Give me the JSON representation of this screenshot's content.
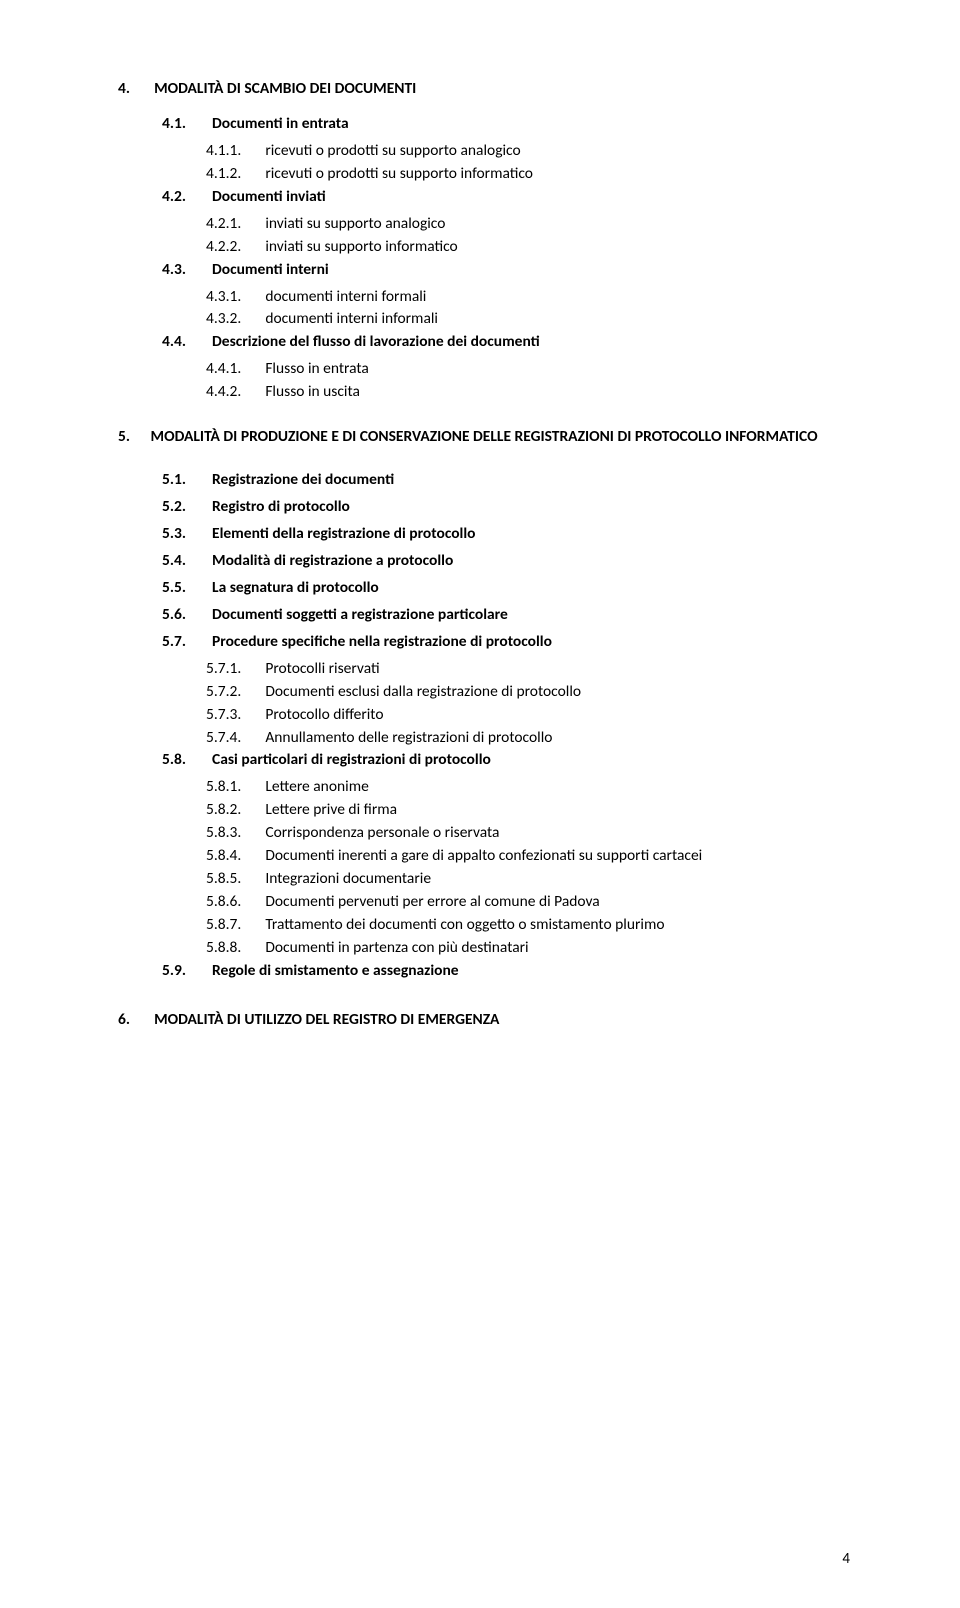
{
  "sec4": {
    "num": "4.",
    "title": "MODALITÀ DI SCAMBIO DEI  DOCUMENTI",
    "s1": {
      "num": "4.1.",
      "title": "Documenti in entrata",
      "s1": {
        "num": "4.1.1.",
        "text": "ricevuti o prodotti su supporto analogico"
      },
      "s2": {
        "num": "4.1.2.",
        "text": "ricevuti o prodotti su supporto informatico"
      }
    },
    "s2": {
      "num": "4.2.",
      "title": "Documenti inviati",
      "s1": {
        "num": "4.2.1.",
        "text": "inviati su supporto analogico"
      },
      "s2": {
        "num": "4.2.2.",
        "text": "inviati su supporto informatico"
      }
    },
    "s3": {
      "num": "4.3.",
      "title": "Documenti interni",
      "s1": {
        "num": "4.3.1.",
        "text": "documenti interni formali"
      },
      "s2": {
        "num": "4.3.2.",
        "text": "documenti interni informali"
      }
    },
    "s4": {
      "num": "4.4.",
      "title": "Descrizione del flusso di lavorazione dei documenti",
      "s1": {
        "num": "4.4.1.",
        "text": "Flusso in entrata"
      },
      "s2": {
        "num": "4.4.2.",
        "text": "Flusso in uscita"
      }
    }
  },
  "sec5": {
    "num": "5.",
    "title": "MODALITÀ DI PRODUZIONE E DI CONSERVAZIONE DELLE REGISTRAZIONI DI PROTOCOLLO INFORMATICO",
    "s1": {
      "num": "5.1.",
      "title": "Registrazione dei documenti"
    },
    "s2": {
      "num": "5.2.",
      "title": "Registro di protocollo"
    },
    "s3": {
      "num": "5.3.",
      "title": "Elementi della registrazione di protocollo"
    },
    "s4": {
      "num": "5.4.",
      "title": "Modalità di registrazione a protocollo"
    },
    "s5": {
      "num": "5.5.",
      "title": "La segnatura di protocollo"
    },
    "s6": {
      "num": "5.6.",
      "title": "Documenti soggetti a registrazione particolare"
    },
    "s7": {
      "num": "5.7.",
      "title": "Procedure specifiche nella registrazione di protocollo",
      "s1": {
        "num": "5.7.1.",
        "text": "Protocolli riservati"
      },
      "s2": {
        "num": "5.7.2.",
        "text": "Documenti esclusi dalla registrazione di protocollo"
      },
      "s3": {
        "num": "5.7.3.",
        "text": "Protocollo differito"
      },
      "s4": {
        "num": "5.7.4.",
        "text": "Annullamento delle registrazioni di protocollo"
      }
    },
    "s8": {
      "num": "5.8.",
      "title": "Casi particolari di registrazioni di protocollo",
      "s1": {
        "num": "5.8.1.",
        "text": "Lettere anonime"
      },
      "s2": {
        "num": "5.8.2.",
        "text": "Lettere prive di firma"
      },
      "s3": {
        "num": "5.8.3.",
        "text": "Corrispondenza personale o riservata"
      },
      "s4": {
        "num": "5.8.4.",
        "text": "Documenti inerenti a gare di appalto confezionati su supporti cartacei"
      },
      "s5": {
        "num": "5.8.5.",
        "text": "Integrazioni documentarie"
      },
      "s6": {
        "num": "5.8.6.",
        "text": "Documenti pervenuti per errore al comune di Padova"
      },
      "s7": {
        "num": "5.8.7.",
        "text": "Trattamento dei documenti con oggetto o smistamento plurimo"
      },
      "s8": {
        "num": "5.8.8.",
        "text": "Documenti in partenza con più destinatari"
      }
    },
    "s9": {
      "num": "5.9.",
      "title": "Regole di smistamento e assegnazione"
    }
  },
  "sec6": {
    "num": "6.",
    "title": "MODALITÀ DI UTILIZZO DEL REGISTRO DI EMERGENZA"
  },
  "page_number": "4"
}
